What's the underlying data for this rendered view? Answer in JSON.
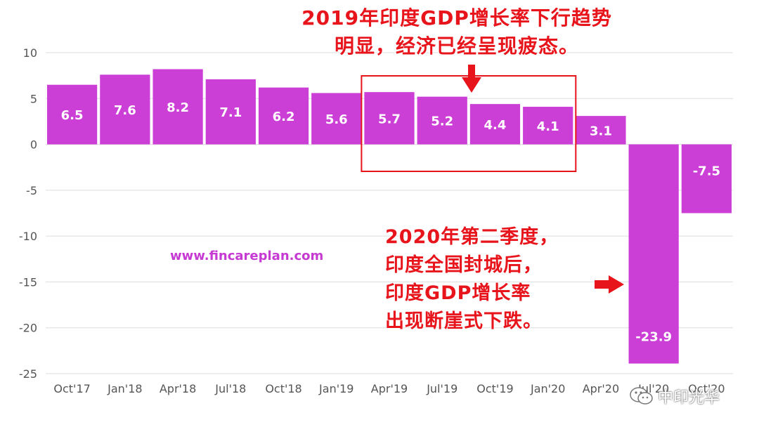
{
  "chart_data": {
    "type": "bar",
    "categories": [
      "Oct'17",
      "Jan'18",
      "Apr'18",
      "Jul'18",
      "Oct'18",
      "Jan'19",
      "Apr'19",
      "Jul'19",
      "Oct'19",
      "Jan'20",
      "Apr'20",
      "Jul'20",
      "Oct'20"
    ],
    "values": [
      6.5,
      7.6,
      8.2,
      7.1,
      6.2,
      5.6,
      5.7,
      5.2,
      4.4,
      4.1,
      3.1,
      -23.9,
      -7.5
    ],
    "y_ticks": [
      10,
      5,
      0,
      -5,
      -10,
      -15,
      -20,
      -25
    ],
    "ylim": [
      -25,
      10
    ],
    "grid": true,
    "title": "",
    "xlabel": "",
    "ylabel": "",
    "bar_color": "#cc3fd6",
    "label_color": "#ffffff",
    "highlight": {
      "from_category": "Apr'19",
      "to_category": "Jan'20",
      "color": "#e8141b"
    }
  },
  "annotations": {
    "top_lines": [
      "2019年印度GDP增长率下行趋势",
      "明显，经济已经呈现疲态。"
    ],
    "bottom_lines": [
      "2020年第二季度，",
      "印度全国封城后，",
      "印度GDP增长率",
      "出现断崖式下跌。"
    ],
    "color": "#e8141b"
  },
  "watermark_url": "www.fincareplan.com",
  "watermark_source": "中印光华",
  "icons": {
    "arrow_down": "arrow-down-icon",
    "arrow_right": "arrow-right-icon",
    "wechat": "wechat-icon"
  }
}
